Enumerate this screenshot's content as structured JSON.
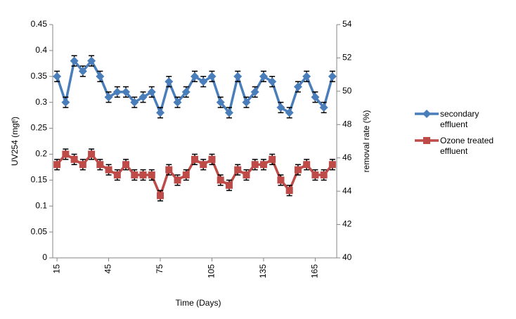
{
  "chart_data": {
    "type": "line",
    "x_label": "Time (Days)",
    "y_label": "UV254 (mgtˡ)",
    "y2_label": "removal rate (%)",
    "x": [
      15,
      20,
      25,
      30,
      35,
      40,
      45,
      50,
      55,
      60,
      65,
      70,
      75,
      80,
      85,
      90,
      95,
      100,
      105,
      110,
      115,
      120,
      125,
      130,
      135,
      140,
      145,
      150,
      155,
      160,
      165,
      170,
      175
    ],
    "series": [
      {
        "name": "secondary effluent",
        "color": "#4a7ebb",
        "marker": "diamond",
        "values": [
          0.35,
          0.3,
          0.38,
          0.36,
          0.38,
          0.35,
          0.31,
          0.32,
          0.32,
          0.3,
          0.31,
          0.32,
          0.28,
          0.34,
          0.3,
          0.32,
          0.35,
          0.34,
          0.35,
          0.3,
          0.28,
          0.35,
          0.3,
          0.32,
          0.35,
          0.34,
          0.29,
          0.28,
          0.33,
          0.35,
          0.31,
          0.29,
          0.35
        ],
        "errors": [
          0.01,
          0.01,
          0.01,
          0.01,
          0.01,
          0.01,
          0.01,
          0.01,
          0.01,
          0.01,
          0.01,
          0.01,
          0.01,
          0.01,
          0.01,
          0.01,
          0.01,
          0.01,
          0.01,
          0.01,
          0.01,
          0.01,
          0.01,
          0.01,
          0.01,
          0.01,
          0.01,
          0.01,
          0.01,
          0.01,
          0.01,
          0.01,
          0.01
        ]
      },
      {
        "name": "Ozone treated effluent",
        "color": "#be4b48",
        "marker": "square",
        "values": [
          0.18,
          0.2,
          0.19,
          0.18,
          0.2,
          0.18,
          0.17,
          0.16,
          0.18,
          0.16,
          0.16,
          0.16,
          0.12,
          0.17,
          0.15,
          0.16,
          0.19,
          0.18,
          0.19,
          0.15,
          0.14,
          0.17,
          0.16,
          0.18,
          0.18,
          0.19,
          0.15,
          0.13,
          0.17,
          0.18,
          0.16,
          0.16,
          0.18
        ],
        "errors": [
          0.01,
          0.01,
          0.01,
          0.01,
          0.01,
          0.01,
          0.01,
          0.01,
          0.01,
          0.01,
          0.01,
          0.01,
          0.01,
          0.01,
          0.01,
          0.01,
          0.01,
          0.01,
          0.01,
          0.01,
          0.01,
          0.01,
          0.01,
          0.01,
          0.01,
          0.01,
          0.01,
          0.01,
          0.01,
          0.01,
          0.01,
          0.01,
          0.01
        ]
      }
    ],
    "xlim": [
      12.5,
      177.5
    ],
    "xticks": [
      15,
      45,
      75,
      105,
      135,
      165
    ],
    "ylim": [
      0,
      0.45
    ],
    "yticks": [
      0,
      0.05,
      0.1,
      0.15,
      0.2,
      0.25,
      0.3,
      0.35,
      0.4,
      0.45
    ],
    "y2lim": [
      40,
      54
    ],
    "y2ticks": [
      40,
      42,
      44,
      46,
      48,
      50,
      52,
      54
    ],
    "legend": "right",
    "grid": false
  }
}
